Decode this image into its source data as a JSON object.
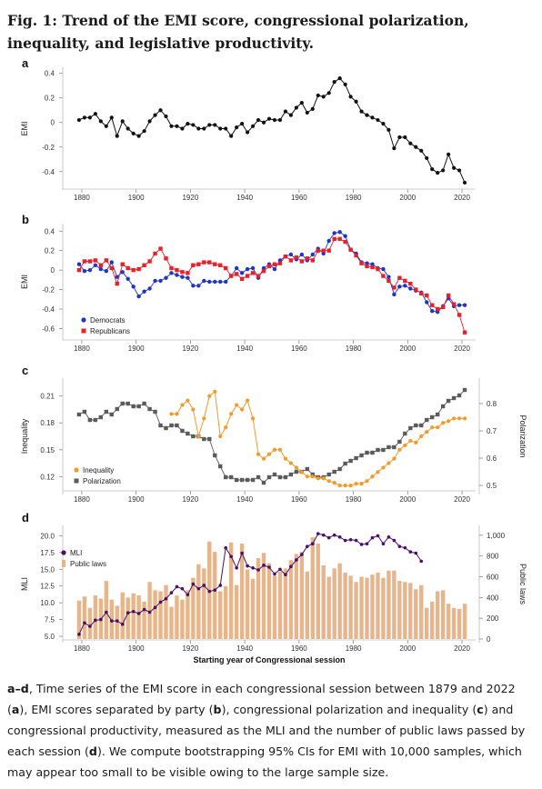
{
  "figure_title": "Fig. 1: Trend of the EMI score, congressional polarization, inequality, and legislative productivity.",
  "caption": {
    "range_prefix": "a–d",
    "text_1": ", Time series of the EMI score in each congressional session between 1879 and 2022 (",
    "a": "a",
    "text_2": "), EMI scores separated by party (",
    "b": "b",
    "text_3": "), congressional polarization and inequality (",
    "c": "c",
    "text_4": ") and congressional productivity, measured as the MLI and the number of public laws passed by each session (",
    "d": "d",
    "text_5": "). We compute bootstrapping 95% CIs for EMI with 10,000 samples, which may appear too small to be visible owing to the large sample size."
  },
  "colors": {
    "emi": "#111111",
    "democrats": "#1f35c8",
    "republicans": "#e8202a",
    "inequality": "#f39a2b",
    "polarization": "#5a5a5a",
    "mli": "#4a0f6b",
    "public_laws": "#e8b48a"
  },
  "chart_data": [
    {
      "panel": "a",
      "type": "line",
      "ylabel": "EMI",
      "xticks": [
        "1880",
        "1900",
        "1920",
        "1940",
        "1960",
        "1980",
        "2000",
        "2020"
      ],
      "yticks": [
        "0.4",
        "0.2",
        "0",
        "-0.2",
        "-0.4"
      ],
      "xlim": [
        1874,
        2024
      ],
      "ylim": [
        -0.52,
        0.42
      ],
      "x": [
        1879,
        1881,
        1883,
        1885,
        1887,
        1889,
        1891,
        1893,
        1895,
        1897,
        1899,
        1901,
        1903,
        1905,
        1907,
        1909,
        1911,
        1913,
        1915,
        1917,
        1919,
        1921,
        1923,
        1925,
        1927,
        1929,
        1931,
        1933,
        1935,
        1937,
        1939,
        1941,
        1943,
        1945,
        1947,
        1949,
        1951,
        1953,
        1955,
        1957,
        1959,
        1961,
        1963,
        1965,
        1967,
        1969,
        1971,
        1973,
        1975,
        1977,
        1979,
        1981,
        1983,
        1985,
        1987,
        1989,
        1991,
        1993,
        1995,
        1997,
        1999,
        2001,
        2003,
        2005,
        2007,
        2009,
        2011,
        2013,
        2015,
        2017,
        2019,
        2021
      ],
      "series": [
        {
          "values": [
            0.02,
            0.04,
            0.04,
            0.07,
            0.01,
            -0.03,
            0.04,
            -0.11,
            0.01,
            -0.05,
            -0.09,
            -0.11,
            -0.07,
            0.01,
            0.06,
            0.1,
            0.05,
            -0.03,
            -0.03,
            -0.05,
            -0.01,
            -0.02,
            -0.05,
            -0.05,
            -0.02,
            -0.02,
            -0.05,
            -0.05,
            -0.11,
            -0.04,
            -0.01,
            -0.08,
            -0.03,
            0.02,
            0,
            0.03,
            0.02,
            0.02,
            0.09,
            0.06,
            0.12,
            0.16,
            0.08,
            0.11,
            0.22,
            0.21,
            0.24,
            0.33,
            0.36,
            0.31,
            0.21,
            0.17,
            0.09,
            0.06,
            0.04,
            0.02,
            -0.01,
            -0.06,
            -0.21,
            -0.12,
            -0.12,
            -0.17,
            -0.2,
            -0.23,
            -0.29,
            -0.38,
            -0.41,
            -0.39,
            -0.26,
            -0.37,
            -0.39,
            -0.49
          ]
        }
      ]
    },
    {
      "panel": "b",
      "type": "line",
      "ylabel": "EMI",
      "xticks": [
        "1880",
        "1900",
        "1920",
        "1940",
        "1960",
        "1980",
        "2000",
        "2020"
      ],
      "yticks": [
        "0.4",
        "0.2",
        "0",
        "-0.2",
        "-0.4",
        "-0.6"
      ],
      "legend": [
        "Democrats",
        "Republicans"
      ],
      "legend_position": "bottom-left",
      "xlim": [
        1874,
        2024
      ],
      "ylim": [
        -0.68,
        0.44
      ],
      "x": [
        1879,
        1881,
        1883,
        1885,
        1887,
        1889,
        1891,
        1893,
        1895,
        1897,
        1899,
        1901,
        1903,
        1905,
        1907,
        1909,
        1911,
        1913,
        1915,
        1917,
        1919,
        1921,
        1923,
        1925,
        1927,
        1929,
        1931,
        1933,
        1935,
        1937,
        1939,
        1941,
        1943,
        1945,
        1947,
        1949,
        1951,
        1953,
        1955,
        1957,
        1959,
        1961,
        1963,
        1965,
        1967,
        1969,
        1971,
        1973,
        1975,
        1977,
        1979,
        1981,
        1983,
        1985,
        1987,
        1989,
        1991,
        1993,
        1995,
        1997,
        1999,
        2001,
        2003,
        2005,
        2007,
        2009,
        2011,
        2013,
        2015,
        2017,
        2019,
        2021
      ],
      "series": [
        {
          "name": "Democrats",
          "values": [
            0.06,
            -0.01,
            0,
            0.05,
            0.01,
            -0.01,
            0.08,
            -0.07,
            -0.02,
            -0.09,
            -0.17,
            -0.27,
            -0.22,
            -0.19,
            -0.11,
            -0.11,
            -0.08,
            -0.03,
            -0.05,
            -0.07,
            -0.08,
            -0.16,
            -0.16,
            -0.11,
            -0.12,
            -0.12,
            -0.12,
            -0.12,
            -0.06,
            0.02,
            -0.03,
            0.01,
            0.02,
            -0.08,
            0.02,
            0.06,
            0.01,
            0.1,
            0.14,
            0.16,
            0.11,
            0.16,
            0.1,
            0.16,
            0.22,
            0.17,
            0.3,
            0.38,
            0.39,
            0.35,
            0.21,
            0.17,
            0.08,
            0.07,
            0.06,
            0.02,
            0.01,
            -0.07,
            -0.25,
            -0.17,
            -0.16,
            -0.19,
            -0.21,
            -0.23,
            -0.33,
            -0.42,
            -0.43,
            -0.37,
            -0.29,
            -0.37,
            -0.36,
            -0.36
          ]
        },
        {
          "name": "Republicans",
          "values": [
            0,
            0.09,
            0.09,
            0.1,
            0.05,
            0.1,
            0.02,
            -0.14,
            0.06,
            0.02,
            0,
            0.01,
            0.05,
            0.09,
            0.17,
            0.22,
            0.12,
            0.02,
            0,
            -0.02,
            -0.03,
            0.05,
            0.06,
            0.08,
            0.08,
            0.06,
            0.05,
            0.02,
            -0.06,
            -0.04,
            -0.09,
            -0.06,
            -0.03,
            -0.06,
            -0.01,
            0.04,
            0.06,
            0.07,
            0.14,
            0.1,
            0.13,
            0.09,
            0.12,
            0.1,
            0.2,
            0.2,
            0.2,
            0.32,
            0.32,
            0.29,
            0.21,
            0.15,
            0.07,
            0.04,
            0.03,
            0.01,
            -0.06,
            -0.11,
            -0.18,
            -0.08,
            -0.11,
            -0.14,
            -0.2,
            -0.24,
            -0.26,
            -0.36,
            -0.4,
            -0.38,
            -0.26,
            -0.35,
            -0.46,
            -0.64
          ]
        }
      ]
    },
    {
      "panel": "c",
      "type": "line",
      "ylabel": "Inequality",
      "y2label": "Polarization",
      "xticks": [
        "1880",
        "1900",
        "1920",
        "1940",
        "1960",
        "1980",
        "2000",
        "2020"
      ],
      "yticks": [
        "0.21",
        "0.18",
        "0.15",
        "0.12"
      ],
      "y2ticks": [
        "0.8",
        "0.7",
        "0.6",
        "0.5"
      ],
      "legend": [
        "Inequality",
        "Polarization"
      ],
      "legend_position": "bottom-left",
      "xlim": [
        1874,
        2024
      ],
      "ylim": [
        0.104,
        0.226
      ],
      "y2lim": [
        0.48,
        0.88
      ],
      "series": [
        {
          "name": "Polarization",
          "axis": "right",
          "x": [
            1879,
            1881,
            1883,
            1885,
            1887,
            1889,
            1891,
            1893,
            1895,
            1897,
            1899,
            1901,
            1903,
            1905,
            1907,
            1909,
            1911,
            1913,
            1915,
            1917,
            1919,
            1921,
            1923,
            1925,
            1927,
            1929,
            1931,
            1933,
            1935,
            1937,
            1939,
            1941,
            1943,
            1945,
            1947,
            1949,
            1951,
            1953,
            1955,
            1957,
            1959,
            1961,
            1963,
            1965,
            1967,
            1969,
            1971,
            1973,
            1975,
            1977,
            1979,
            1981,
            1983,
            1985,
            1987,
            1989,
            1991,
            1993,
            1995,
            1997,
            1999,
            2001,
            2003,
            2005,
            2007,
            2009,
            2011,
            2013,
            2015,
            2017,
            2019,
            2021
          ],
          "values": [
            0.76,
            0.77,
            0.74,
            0.74,
            0.75,
            0.77,
            0.76,
            0.78,
            0.8,
            0.8,
            0.79,
            0.79,
            0.8,
            0.78,
            0.77,
            0.72,
            0.71,
            0.72,
            0.72,
            0.7,
            0.69,
            0.68,
            0.68,
            0.67,
            0.67,
            0.61,
            0.57,
            0.53,
            0.53,
            0.52,
            0.52,
            0.52,
            0.52,
            0.53,
            0.51,
            0.53,
            0.54,
            0.53,
            0.53,
            0.54,
            0.55,
            0.55,
            0.56,
            0.54,
            0.53,
            0.53,
            0.54,
            0.55,
            0.56,
            0.58,
            0.59,
            0.6,
            0.61,
            0.62,
            0.62,
            0.63,
            0.63,
            0.64,
            0.64,
            0.66,
            0.69,
            0.71,
            0.72,
            0.72,
            0.74,
            0.75,
            0.76,
            0.79,
            0.81,
            0.82,
            0.83,
            0.85
          ]
        },
        {
          "name": "Inequality",
          "axis": "left",
          "x": [
            1913,
            1915,
            1917,
            1919,
            1921,
            1923,
            1925,
            1927,
            1929,
            1931,
            1933,
            1935,
            1937,
            1939,
            1941,
            1943,
            1945,
            1947,
            1949,
            1951,
            1953,
            1955,
            1957,
            1959,
            1961,
            1963,
            1965,
            1967,
            1969,
            1971,
            1973,
            1975,
            1977,
            1979,
            1981,
            1983,
            1985,
            1987,
            1989,
            1991,
            1993,
            1995,
            1997,
            1999,
            2001,
            2003,
            2005,
            2007,
            2009,
            2011,
            2013,
            2015,
            2017,
            2019,
            2021
          ],
          "values": [
            0.19,
            0.19,
            0.2,
            0.205,
            0.195,
            0.165,
            0.185,
            0.21,
            0.215,
            0.165,
            0.175,
            0.19,
            0.2,
            0.195,
            0.205,
            0.185,
            0.145,
            0.14,
            0.145,
            0.15,
            0.15,
            0.14,
            0.135,
            0.13,
            0.125,
            0.12,
            0.12,
            0.118,
            0.118,
            0.115,
            0.113,
            0.11,
            0.11,
            0.11,
            0.112,
            0.112,
            0.115,
            0.12,
            0.125,
            0.13,
            0.135,
            0.14,
            0.15,
            0.155,
            0.16,
            0.158,
            0.165,
            0.17,
            0.175,
            0.175,
            0.18,
            0.182,
            0.185,
            0.185,
            0.185
          ]
        }
      ]
    },
    {
      "panel": "d",
      "type": "bar",
      "ylabel": "MLI",
      "y2label": "Public laws",
      "xlabel": "Starting year of Congressional session",
      "xticks": [
        "1880",
        "1900",
        "1920",
        "1940",
        "1960",
        "1980",
        "2000",
        "2020"
      ],
      "yticks": [
        "20.0",
        "17.5",
        "15.0",
        "12.5",
        "10.0",
        "7.5",
        "5.0"
      ],
      "y2ticks": [
        "1,000",
        "800",
        "600",
        "400",
        "200",
        "0"
      ],
      "legend": [
        "MLI",
        "Public laws"
      ],
      "legend_position": "top-left",
      "xlim": [
        1874,
        2024
      ],
      "ylim": [
        4.6,
        21.0
      ],
      "y2lim": [
        0,
        1060
      ],
      "x": [
        1879,
        1881,
        1883,
        1885,
        1887,
        1889,
        1891,
        1893,
        1895,
        1897,
        1899,
        1901,
        1903,
        1905,
        1907,
        1909,
        1911,
        1913,
        1915,
        1917,
        1919,
        1921,
        1923,
        1925,
        1927,
        1929,
        1931,
        1933,
        1935,
        1937,
        1939,
        1941,
        1943,
        1945,
        1947,
        1949,
        1951,
        1953,
        1955,
        1957,
        1959,
        1961,
        1963,
        1965,
        1967,
        1969,
        1971,
        1973,
        1975,
        1977,
        1979,
        1981,
        1983,
        1985,
        1987,
        1989,
        1991,
        1993,
        1995,
        1997,
        1999,
        2001,
        2003,
        2005,
        2007,
        2009,
        2011,
        2013,
        2015,
        2017,
        2019,
        2021
      ],
      "series": [
        {
          "name": "Public laws",
          "axis": "right",
          "type": "bar",
          "values": [
            370,
            410,
            300,
            420,
            390,
            560,
            380,
            320,
            450,
            400,
            440,
            420,
            360,
            550,
            470,
            460,
            520,
            310,
            420,
            380,
            470,
            590,
            720,
            680,
            940,
            840,
            460,
            510,
            930,
            520,
            920,
            670,
            580,
            780,
            830,
            730,
            610,
            650,
            680,
            760,
            820,
            840,
            650,
            980,
            920,
            710,
            600,
            680,
            730,
            640,
            610,
            550,
            600,
            590,
            620,
            640,
            590,
            660,
            660,
            560,
            550,
            540,
            480,
            520,
            300,
            360,
            460,
            470,
            340,
            300,
            290,
            340
          ]
        },
        {
          "name": "MLI",
          "axis": "left",
          "type": "line",
          "x": [
            1879,
            1881,
            1883,
            1885,
            1887,
            1889,
            1891,
            1893,
            1895,
            1897,
            1899,
            1901,
            1903,
            1905,
            1907,
            1909,
            1911,
            1913,
            1915,
            1917,
            1919,
            1921,
            1923,
            1925,
            1927,
            1929,
            1931,
            1933,
            1935,
            1937,
            1939,
            1941,
            1943,
            1945,
            1947,
            1949,
            1951,
            1953,
            1955,
            1957,
            1959,
            1961,
            1963,
            1965,
            1967,
            1969,
            1971,
            1973,
            1975,
            1977,
            1979,
            1981,
            1983,
            1985,
            1987,
            1989,
            1991,
            1993,
            1995,
            1997,
            1999,
            2001,
            2003,
            2005
          ],
          "values": [
            5.3,
            7.0,
            6.5,
            7.4,
            7.5,
            8.6,
            7.3,
            7.3,
            6.8,
            8.5,
            8.7,
            8.4,
            9.0,
            8.6,
            9.3,
            10.1,
            10.6,
            11.5,
            12.4,
            12.1,
            11.2,
            12.8,
            12.1,
            12.6,
            11.7,
            11.9,
            12.6,
            18.2,
            16.9,
            15.2,
            17.4,
            15.5,
            15.2,
            14.9,
            15.6,
            15.3,
            14.3,
            15.0,
            14.2,
            15.4,
            16.4,
            17.2,
            18.4,
            18.8,
            20.3,
            20.1,
            19.7,
            20.1,
            19.8,
            19.3,
            19.4,
            19.3,
            18.7,
            18.8,
            19.7,
            20.0,
            18.8,
            19.8,
            19.3,
            18.4,
            18.2,
            17.6,
            17.4,
            16.2
          ]
        }
      ]
    }
  ]
}
